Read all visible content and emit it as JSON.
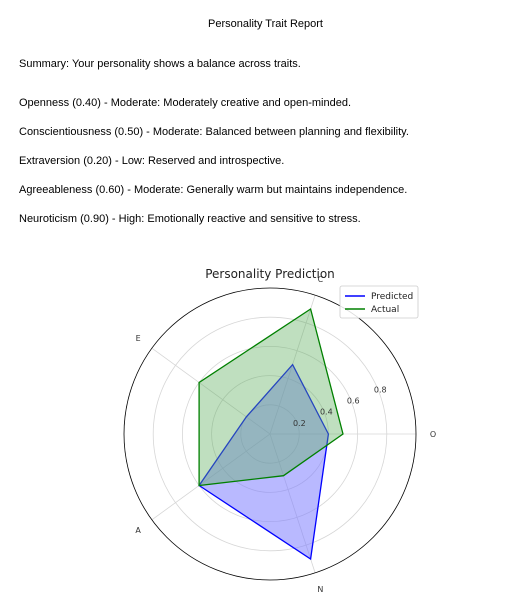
{
  "report": {
    "title": "Personality Trait Report",
    "summary": "Summary: Your personality shows a balance across traits.",
    "traits": [
      "Openness (0.40) - Moderate: Moderately creative and open-minded.",
      "Conscientiousness (0.50) - Moderate: Balanced between planning and flexibility.",
      "Extraversion (0.20) - Low: Reserved and introspective.",
      "Agreeableness (0.60) - Moderate: Generally warm but maintains independence.",
      "Neuroticism (0.90) - High: Emotionally reactive and sensitive to stress."
    ]
  },
  "chart_data": {
    "type": "radar",
    "title": "Personality Prediction",
    "axes": [
      "O",
      "C",
      "E",
      "A",
      "N"
    ],
    "radial_ticks": [
      "0.2",
      "0.4",
      "0.6",
      "0.8"
    ],
    "rmax": 1.0,
    "grid": true,
    "legend_position": "top-right",
    "series": [
      {
        "name": "Predicted",
        "values": [
          0.4,
          0.5,
          0.2,
          0.6,
          0.9
        ],
        "color": "#0000ff",
        "fill": "#8080ff",
        "fill_opacity": 0.55
      },
      {
        "name": "Actual",
        "values": [
          0.5,
          0.9,
          0.6,
          0.6,
          0.3
        ],
        "color": "#008000",
        "fill": "#60b060",
        "fill_opacity": 0.4
      }
    ]
  }
}
